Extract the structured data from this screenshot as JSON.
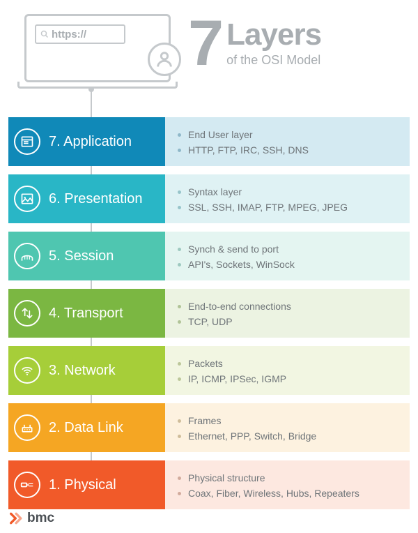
{
  "header": {
    "url_text": "https://",
    "big_number": "7",
    "title_main": "Layers",
    "title_sub": "of the OSI Model"
  },
  "colors": {
    "header_gray": "#a8adb1",
    "outline_gray": "#c5c9cc",
    "text_gray": "#6e7478"
  },
  "layers": [
    {
      "label": "7. Application",
      "left_bg": "#1089b8",
      "right_bg": "#d4eaf2",
      "bullet_color": "#8fb8c9",
      "icon": "window",
      "bullets": [
        "End User layer",
        "HTTP, FTP, IRC, SSH, DNS"
      ]
    },
    {
      "label": "6. Presentation",
      "left_bg": "#29b6c6",
      "right_bg": "#dff2f4",
      "bullet_color": "#97c4ca",
      "icon": "image",
      "bullets": [
        "Syntax layer",
        "SSL, SSH, IMAP, FTP, MPEG, JPEG"
      ]
    },
    {
      "label": "5. Session",
      "left_bg": "#4fc6b0",
      "right_bg": "#e4f5f1",
      "bullet_color": "#9ec9c0",
      "icon": "bridge",
      "bullets": [
        "Synch & send to port",
        "API's, Sockets, WinSock"
      ]
    },
    {
      "label": "4. Transport",
      "left_bg": "#7bb742",
      "right_bg": "#ecf3e2",
      "bullet_color": "#b0c397",
      "icon": "arrows",
      "bullets": [
        "End-to-end connections",
        "TCP, UDP"
      ]
    },
    {
      "label": "3. Network",
      "left_bg": "#a6ce39",
      "right_bg": "#f2f6e2",
      "bullet_color": "#bcc79a",
      "icon": "wifi",
      "bullets": [
        "Packets",
        "IP, ICMP, IPSec, IGMP"
      ]
    },
    {
      "label": "2. Data Link",
      "left_bg": "#f5a623",
      "right_bg": "#fdf2e0",
      "bullet_color": "#cfbd9a",
      "icon": "router",
      "bullets": [
        "Frames",
        "Ethernet, PPP, Switch, Bridge"
      ]
    },
    {
      "label": "1. Physical",
      "left_bg": "#f15a29",
      "right_bg": "#fde8e0",
      "bullet_color": "#d2ab9d",
      "icon": "cable",
      "bullets": [
        "Physical structure",
        "Coax, Fiber, Wireless, Hubs, Repeaters"
      ]
    }
  ],
  "footer": {
    "brand": "bmc",
    "chevron_color": "#f15a29"
  }
}
